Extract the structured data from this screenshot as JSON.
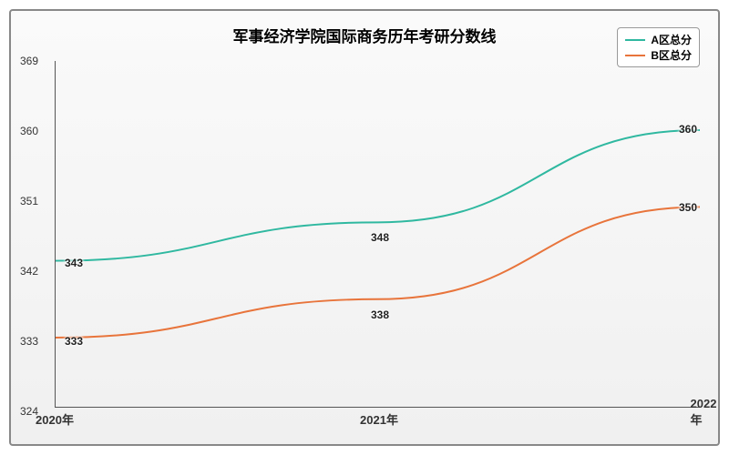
{
  "chart": {
    "type": "line",
    "title": "军事经济学院国际商务历年考研分数线",
    "title_fontsize": 17,
    "title_color": "#222222",
    "background_gradient_top": "#fafafa",
    "background_gradient_bottom": "#f0f0f0",
    "border_color": "#888888",
    "axis_color": "#555555",
    "label_color": "#333333",
    "x_categories": [
      "2020年",
      "2021年",
      "2022年"
    ],
    "ylim": [
      324,
      369
    ],
    "ytick_step": 9,
    "y_ticks": [
      324,
      333,
      342,
      351,
      360,
      369
    ],
    "series": [
      {
        "name": "A区总分",
        "color": "#2fb8a0",
        "values": [
          343,
          348,
          360
        ],
        "line_width": 2
      },
      {
        "name": "B区总分",
        "color": "#e8743b",
        "values": [
          333,
          338,
          350
        ],
        "line_width": 2
      }
    ],
    "legend": {
      "position": "top-right",
      "fontsize": 12,
      "border_color": "#999999"
    },
    "data_label_fontsize": 12
  }
}
